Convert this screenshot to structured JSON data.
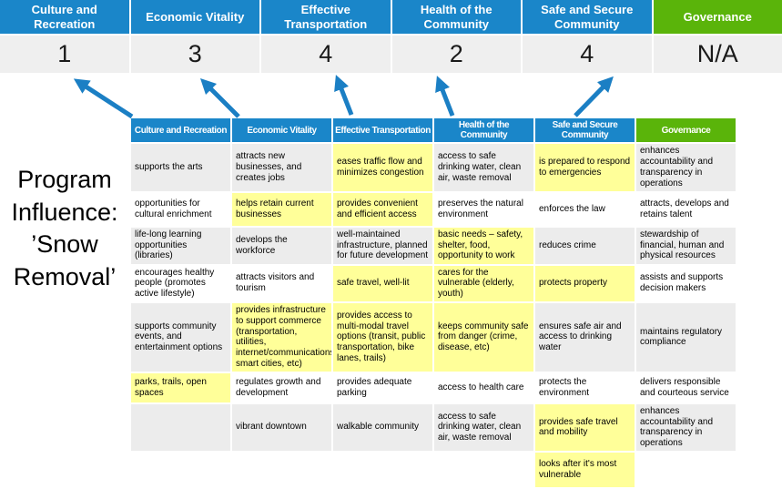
{
  "title_block": {
    "lines": [
      "Program",
      "Influence:",
      "’Snow",
      "Removal’"
    ]
  },
  "scoreboard": {
    "columns": [
      {
        "label": "Culture and Recreation",
        "score": "1",
        "theme": "blue"
      },
      {
        "label": "Economic Vitality",
        "score": "3",
        "theme": "blue"
      },
      {
        "label": "Effective Transportation",
        "score": "4",
        "theme": "blue"
      },
      {
        "label": "Health of the Community",
        "score": "2",
        "theme": "blue"
      },
      {
        "label": "Safe and Secure Community",
        "score": "4",
        "theme": "blue"
      },
      {
        "label": "Governance",
        "score": "N/A",
        "theme": "green"
      }
    ]
  },
  "arrows": {
    "count": 5,
    "color": "#1b7fc4"
  },
  "colors": {
    "header_blue": "#1a86c9",
    "header_green": "#5ab40a",
    "highlight_yellow": "#ffff99",
    "stripe_gray": "#ececec",
    "score_bg": "#efefef",
    "arrow_blue": "#1b7fc4"
  },
  "matrix": {
    "headers": [
      {
        "label": "Culture and Recreation",
        "theme": "blue"
      },
      {
        "label": "Economic Vitality",
        "theme": "blue"
      },
      {
        "label": "Effective Transportation",
        "theme": "blue"
      },
      {
        "label": "Health of the Community",
        "theme": "blue"
      },
      {
        "label": "Safe and Secure Community",
        "theme": "blue"
      },
      {
        "label": "Governance",
        "theme": "green"
      }
    ],
    "rows": [
      [
        {
          "text": "supports the arts",
          "highlight": false
        },
        {
          "text": "attracts new businesses, and creates jobs",
          "highlight": false
        },
        {
          "text": "eases traffic flow and minimizes congestion",
          "highlight": true
        },
        {
          "text": "access to safe drinking water, clean air, waste removal",
          "highlight": false
        },
        {
          "text": "is prepared to respond to emergencies",
          "highlight": true
        },
        {
          "text": "enhances accountability and transparency in operations",
          "highlight": false
        }
      ],
      [
        {
          "text": "opportunities for cultural enrichment",
          "highlight": false
        },
        {
          "text": "helps retain current businesses",
          "highlight": true
        },
        {
          "text": "provides convenient and efficient access",
          "highlight": true
        },
        {
          "text": "preserves the natural environment",
          "highlight": false
        },
        {
          "text": "enforces the law",
          "highlight": false
        },
        {
          "text": "attracts, develops and retains talent",
          "highlight": false
        }
      ],
      [
        {
          "text": "life-long learning opportunities (libraries)",
          "highlight": false
        },
        {
          "text": "develops the workforce",
          "highlight": false
        },
        {
          "text": "well-maintained infrastructure, planned for future development",
          "highlight": false
        },
        {
          "text": "basic needs – safety, shelter, food, opportunity to work",
          "highlight": true
        },
        {
          "text": "reduces crime",
          "highlight": false
        },
        {
          "text": "stewardship of financial, human and physical resources",
          "highlight": false
        }
      ],
      [
        {
          "text": "encourages healthy people (promotes active lifestyle)",
          "highlight": false
        },
        {
          "text": "attracts visitors and tourism",
          "highlight": false
        },
        {
          "text": "safe travel, well-lit",
          "highlight": true
        },
        {
          "text": "cares for the vulnerable (elderly, youth)",
          "highlight": true
        },
        {
          "text": "protects property",
          "highlight": true
        },
        {
          "text": "assists and supports decision makers",
          "highlight": false
        }
      ],
      [
        {
          "text": "supports community events, and entertainment options",
          "highlight": false
        },
        {
          "text": "provides infrastructure to support commerce (transportation, utilities, internet/communications, smart cities, etc)",
          "highlight": true
        },
        {
          "text": "provides access to multi-modal travel options (transit, public transportation, bike lanes, trails)",
          "highlight": true
        },
        {
          "text": "keeps community safe from danger (crime, disease, etc)",
          "highlight": true
        },
        {
          "text": "ensures safe air and access to drinking water",
          "highlight": false
        },
        {
          "text": "maintains regulatory compliance",
          "highlight": false
        }
      ],
      [
        {
          "text": "parks, trails, open spaces",
          "highlight": true
        },
        {
          "text": "regulates growth and development",
          "highlight": false
        },
        {
          "text": "provides adequate parking",
          "highlight": false
        },
        {
          "text": "access to health care",
          "highlight": false
        },
        {
          "text": "protects the environment",
          "highlight": false
        },
        {
          "text": "delivers responsible and courteous service",
          "highlight": false
        }
      ],
      [
        {
          "text": "",
          "highlight": false
        },
        {
          "text": "vibrant downtown",
          "highlight": false
        },
        {
          "text": "walkable community",
          "highlight": false
        },
        {
          "text": "access to safe drinking water, clean air, waste removal",
          "highlight": false
        },
        {
          "text": "provides safe travel and mobility",
          "highlight": true
        },
        {
          "text": "enhances accountability and transparency in operations",
          "highlight": false
        }
      ],
      [
        {
          "text": "",
          "highlight": false
        },
        {
          "text": "",
          "highlight": false
        },
        {
          "text": "",
          "highlight": false
        },
        {
          "text": "",
          "highlight": false
        },
        {
          "text": "looks after it's most vulnerable",
          "highlight": true
        },
        {
          "text": "",
          "highlight": false
        }
      ]
    ]
  }
}
